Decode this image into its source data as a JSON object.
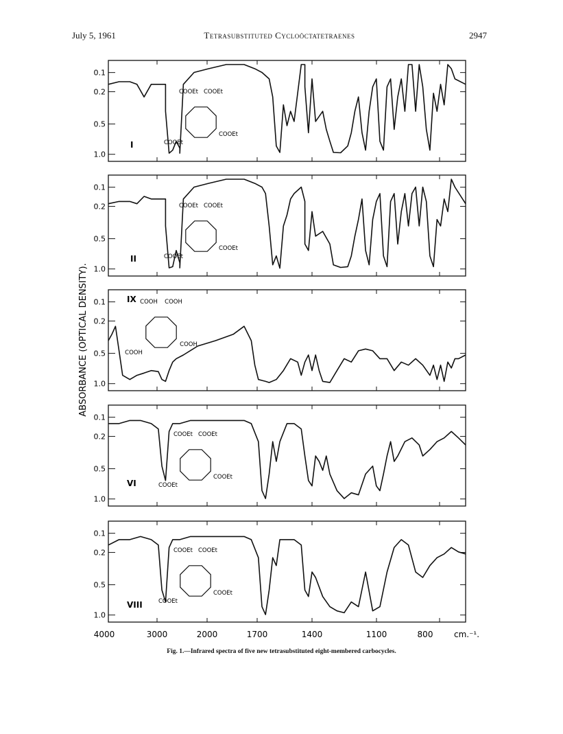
{
  "header": {
    "date": "July 5, 1961",
    "title": "Tetrasubstituted Cycloöctatetraenes",
    "page": "2947"
  },
  "figure": {
    "ylabel": "ABSORBANCE (OPTICAL DENSITY).",
    "x_ticks": [
      "4000",
      "3000",
      "2000",
      "1700",
      "1400",
      "1100",
      "800",
      "cm.⁻¹."
    ],
    "caption": "Fig. 1.—Infrared spectra of five new tetrasubstituted eight-membered carbocycles.",
    "panels": [
      {
        "id": "I",
        "substituents": [
          "COOEt",
          "COOEt",
          "COOEt",
          "COOEt"
        ]
      },
      {
        "id": "II",
        "substituents": [
          "COOEt",
          "COOEt",
          "COOEt",
          "COOEt"
        ]
      },
      {
        "id": "IX",
        "substituents": [
          "COOH",
          "COOH",
          "COOH",
          "COOH"
        ]
      },
      {
        "id": "VI",
        "substituents": [
          "COOEt",
          "COOEt",
          "COOEt",
          "COOEt"
        ]
      },
      {
        "id": "VIII",
        "substituents": [
          "COOEt",
          "COOEt",
          "COOEt",
          "COOEt"
        ]
      }
    ],
    "y_ticks": [
      "0.1",
      "0.2",
      "0.5",
      "1.0"
    ]
  },
  "chart_data": {
    "type": "line",
    "x_ticks": [
      "4000",
      "3000",
      "2000",
      "1700",
      "1400",
      "1100",
      "800"
    ],
    "y_ticks": [
      0.1,
      0.2,
      0.5,
      1.0
    ],
    "ylabel": "ABSORBANCE (OPTICAL DENSITY).",
    "xlabel": "cm.⁻¹",
    "grid": false,
    "series": [
      {
        "name": "I",
        "x": [
          0,
          0.03,
          0.06,
          0.08,
          0.1,
          0.12,
          0.14,
          0.16,
          0.16,
          0.17,
          0.18,
          0.19,
          0.2,
          0.2,
          0.21,
          0.24,
          0.28,
          0.33,
          0.38,
          0.41,
          0.43,
          0.45,
          0.46,
          0.47,
          0.48,
          0.49,
          0.5,
          0.51,
          0.52,
          0.54,
          0.55,
          0.55,
          0.56,
          0.57,
          0.58,
          0.6,
          0.61,
          0.62,
          0.63,
          0.65,
          0.67,
          0.68,
          0.69,
          0.7,
          0.71,
          0.72,
          0.73,
          0.74,
          0.75,
          0.76,
          0.77,
          0.78,
          0.79,
          0.8,
          0.81,
          0.82,
          0.83,
          0.84,
          0.85,
          0.86,
          0.87,
          0.88,
          0.89,
          0.9,
          0.91,
          0.92,
          0.93,
          0.94,
          0.95,
          0.96,
          0.97,
          1.0
        ],
        "y": [
          0.14,
          0.13,
          0.13,
          0.14,
          0.2,
          0.14,
          0.14,
          0.14,
          0.3,
          0.98,
          0.9,
          0.7,
          0.85,
          0.98,
          0.14,
          0.1,
          0.09,
          0.08,
          0.08,
          0.09,
          0.1,
          0.12,
          0.2,
          0.8,
          0.96,
          0.25,
          0.45,
          0.3,
          0.4,
          0.08,
          0.08,
          0.15,
          0.55,
          0.12,
          0.4,
          0.3,
          0.5,
          0.7,
          0.96,
          0.97,
          0.8,
          0.55,
          0.3,
          0.2,
          0.55,
          0.9,
          0.3,
          0.15,
          0.12,
          0.7,
          0.9,
          0.15,
          0.12,
          0.5,
          0.2,
          0.12,
          0.3,
          0.08,
          0.08,
          0.3,
          0.08,
          0.15,
          0.5,
          0.9,
          0.18,
          0.3,
          0.14,
          0.25,
          0.08,
          0.09,
          0.12,
          0.14
        ]
      },
      {
        "name": "II",
        "x": [
          0,
          0.03,
          0.06,
          0.08,
          0.1,
          0.12,
          0.14,
          0.16,
          0.16,
          0.17,
          0.18,
          0.19,
          0.2,
          0.2,
          0.21,
          0.24,
          0.28,
          0.33,
          0.38,
          0.41,
          0.43,
          0.44,
          0.45,
          0.46,
          0.47,
          0.48,
          0.49,
          0.5,
          0.51,
          0.52,
          0.54,
          0.55,
          0.55,
          0.56,
          0.57,
          0.58,
          0.6,
          0.62,
          0.63,
          0.65,
          0.67,
          0.68,
          0.69,
          0.7,
          0.71,
          0.72,
          0.73,
          0.74,
          0.75,
          0.76,
          0.77,
          0.78,
          0.79,
          0.8,
          0.81,
          0.82,
          0.83,
          0.84,
          0.85,
          0.86,
          0.87,
          0.88,
          0.89,
          0.9,
          0.91,
          0.92,
          0.93,
          0.94,
          0.95,
          0.96,
          0.97,
          1.0
        ],
        "y": [
          0.16,
          0.15,
          0.15,
          0.16,
          0.13,
          0.14,
          0.14,
          0.14,
          0.3,
          0.98,
          0.95,
          0.6,
          0.85,
          0.98,
          0.14,
          0.1,
          0.09,
          0.08,
          0.08,
          0.09,
          0.1,
          0.12,
          0.3,
          0.9,
          0.7,
          0.99,
          0.3,
          0.22,
          0.14,
          0.12,
          0.1,
          0.15,
          0.5,
          0.6,
          0.2,
          0.4,
          0.35,
          0.5,
          0.9,
          0.97,
          0.95,
          0.7,
          0.4,
          0.25,
          0.14,
          0.6,
          0.9,
          0.25,
          0.15,
          0.12,
          0.7,
          0.95,
          0.15,
          0.12,
          0.5,
          0.2,
          0.12,
          0.3,
          0.12,
          0.1,
          0.3,
          0.1,
          0.15,
          0.7,
          0.95,
          0.25,
          0.3,
          0.14,
          0.2,
          0.08,
          0.1,
          0.16
        ]
      },
      {
        "name": "IX",
        "x": [
          0,
          0.01,
          0.02,
          0.03,
          0.04,
          0.06,
          0.08,
          0.1,
          0.12,
          0.14,
          0.15,
          0.16,
          0.17,
          0.18,
          0.19,
          0.21,
          0.25,
          0.3,
          0.35,
          0.38,
          0.4,
          0.41,
          0.42,
          0.44,
          0.45,
          0.47,
          0.49,
          0.51,
          0.53,
          0.54,
          0.55,
          0.56,
          0.57,
          0.58,
          0.59,
          0.6,
          0.62,
          0.64,
          0.66,
          0.68,
          0.7,
          0.72,
          0.74,
          0.76,
          0.78,
          0.8,
          0.82,
          0.84,
          0.86,
          0.88,
          0.9,
          0.91,
          0.92,
          0.93,
          0.94,
          0.95,
          0.96,
          0.97,
          0.98,
          1.0
        ],
        "y": [
          0.3,
          0.25,
          0.2,
          0.4,
          0.8,
          0.9,
          0.8,
          0.75,
          0.7,
          0.72,
          0.9,
          0.95,
          0.7,
          0.55,
          0.5,
          0.45,
          0.35,
          0.3,
          0.25,
          0.2,
          0.3,
          0.6,
          0.9,
          0.95,
          0.98,
          0.9,
          0.7,
          0.5,
          0.55,
          0.8,
          0.55,
          0.45,
          0.7,
          0.45,
          0.7,
          0.95,
          0.98,
          0.7,
          0.5,
          0.55,
          0.4,
          0.38,
          0.4,
          0.5,
          0.5,
          0.7,
          0.55,
          0.6,
          0.5,
          0.6,
          0.8,
          0.6,
          0.9,
          0.6,
          0.95,
          0.55,
          0.65,
          0.5,
          0.5,
          0.45
        ]
      },
      {
        "name": "VI",
        "x": [
          0,
          0.03,
          0.06,
          0.09,
          0.12,
          0.14,
          0.15,
          0.16,
          0.17,
          0.18,
          0.2,
          0.23,
          0.27,
          0.33,
          0.38,
          0.4,
          0.42,
          0.43,
          0.44,
          0.45,
          0.46,
          0.47,
          0.48,
          0.5,
          0.52,
          0.54,
          0.55,
          0.56,
          0.57,
          0.58,
          0.59,
          0.6,
          0.61,
          0.62,
          0.64,
          0.66,
          0.68,
          0.7,
          0.72,
          0.74,
          0.75,
          0.76,
          0.77,
          0.78,
          0.79,
          0.8,
          0.81,
          0.83,
          0.85,
          0.87,
          0.88,
          0.9,
          0.92,
          0.94,
          0.96,
          0.98,
          1.0
        ],
        "y": [
          0.12,
          0.12,
          0.11,
          0.11,
          0.12,
          0.14,
          0.4,
          0.6,
          0.15,
          0.12,
          0.12,
          0.11,
          0.11,
          0.11,
          0.11,
          0.12,
          0.2,
          0.8,
          1.0,
          0.5,
          0.2,
          0.35,
          0.2,
          0.12,
          0.12,
          0.14,
          0.3,
          0.6,
          0.7,
          0.3,
          0.35,
          0.45,
          0.3,
          0.5,
          0.8,
          1.0,
          0.85,
          0.9,
          0.5,
          0.4,
          0.7,
          0.8,
          0.5,
          0.3,
          0.2,
          0.35,
          0.3,
          0.2,
          0.18,
          0.22,
          0.3,
          0.25,
          0.2,
          0.18,
          0.15,
          0.18,
          0.22
        ]
      },
      {
        "name": "VIII",
        "x": [
          0,
          0.03,
          0.06,
          0.09,
          0.12,
          0.14,
          0.15,
          0.16,
          0.17,
          0.18,
          0.2,
          0.23,
          0.27,
          0.33,
          0.38,
          0.4,
          0.42,
          0.43,
          0.44,
          0.45,
          0.46,
          0.47,
          0.48,
          0.5,
          0.52,
          0.54,
          0.55,
          0.56,
          0.57,
          0.58,
          0.6,
          0.62,
          0.64,
          0.66,
          0.68,
          0.7,
          0.72,
          0.74,
          0.76,
          0.78,
          0.8,
          0.82,
          0.84,
          0.86,
          0.88,
          0.9,
          0.92,
          0.94,
          0.96,
          0.98,
          1.0
        ],
        "y": [
          0.14,
          0.12,
          0.12,
          0.11,
          0.12,
          0.14,
          0.5,
          0.7,
          0.15,
          0.12,
          0.12,
          0.11,
          0.11,
          0.11,
          0.11,
          0.12,
          0.2,
          0.8,
          1.0,
          0.5,
          0.2,
          0.25,
          0.12,
          0.12,
          0.12,
          0.14,
          0.5,
          0.6,
          0.3,
          0.35,
          0.6,
          0.8,
          0.9,
          0.95,
          0.7,
          0.8,
          0.3,
          0.9,
          0.8,
          0.3,
          0.15,
          0.12,
          0.14,
          0.3,
          0.35,
          0.25,
          0.2,
          0.18,
          0.15,
          0.17,
          0.18
        ]
      }
    ]
  }
}
